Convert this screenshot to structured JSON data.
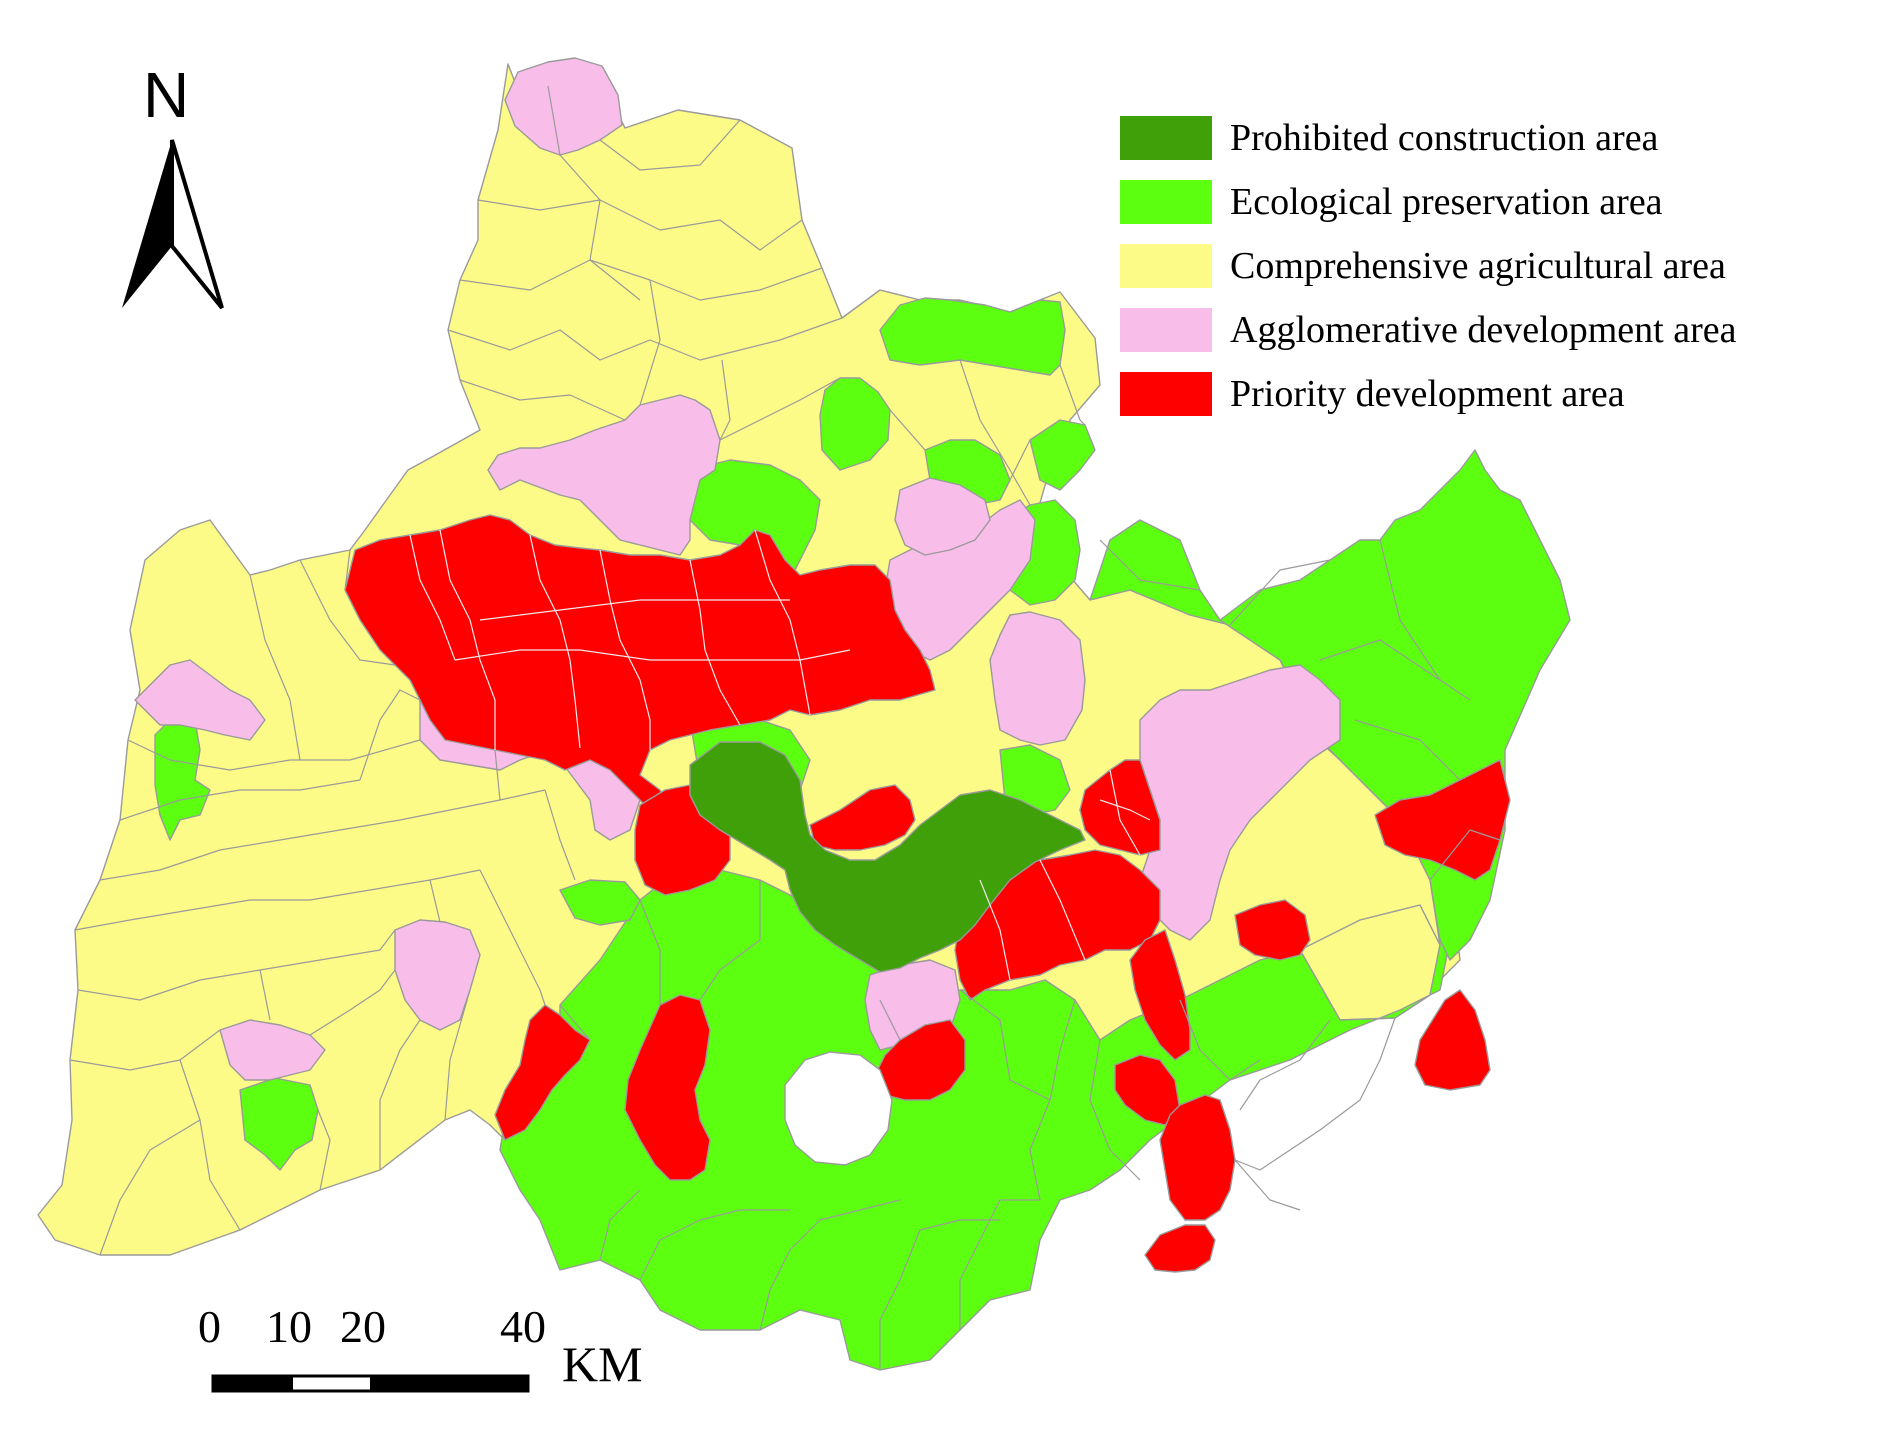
{
  "map": {
    "north_label": "N",
    "legend": [
      {
        "label": "Prohibited construction area",
        "color": "#3fa00a"
      },
      {
        "label": "Ecological preservation area",
        "color": "#5cff0f"
      },
      {
        "label": "Comprehensive  agricultural area",
        "color": "#fdfb88"
      },
      {
        "label": "Agglomerative development area",
        "color": "#f9bdea"
      },
      {
        "label": "Priority development area",
        "color": "#ff0000"
      }
    ],
    "scale_bar": {
      "ticks": [
        "0",
        "10",
        "20",
        "40"
      ],
      "unit": "KM"
    }
  }
}
